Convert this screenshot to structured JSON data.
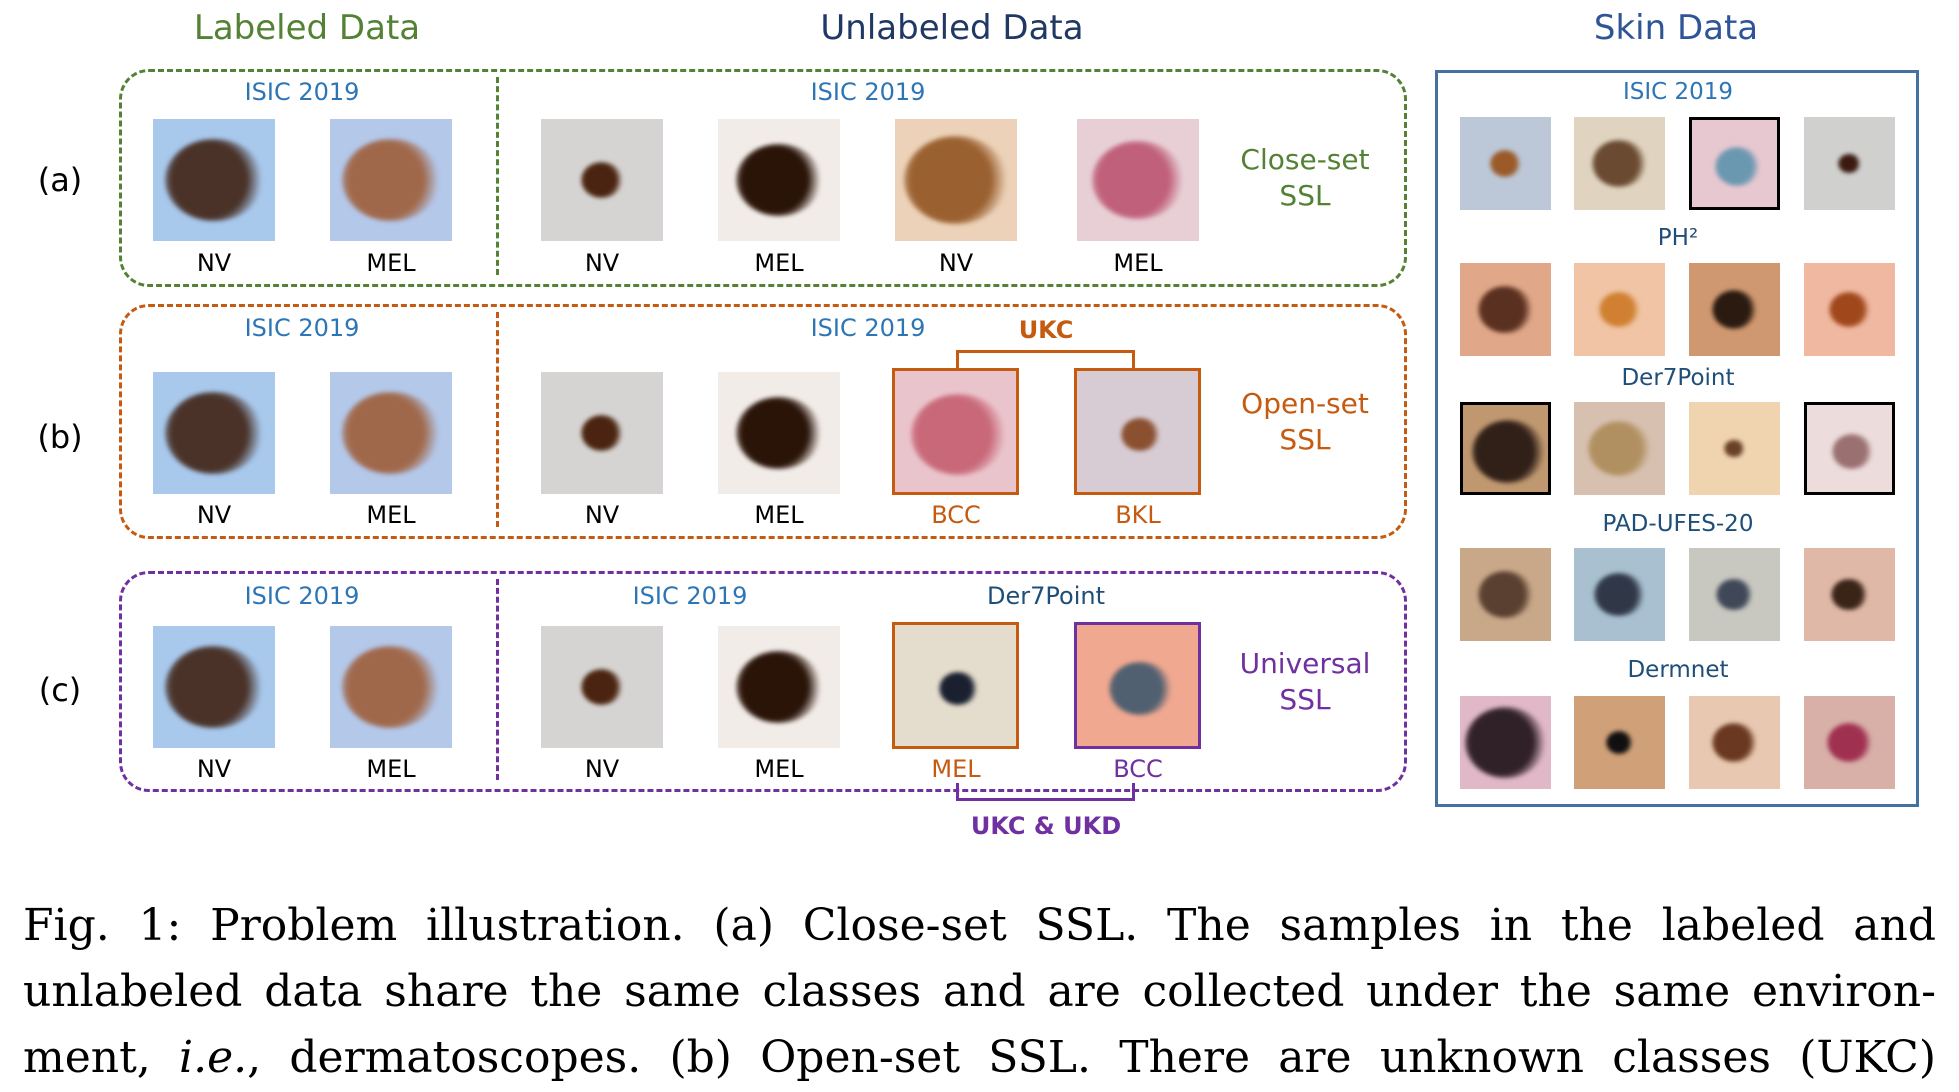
{
  "headers": {
    "labeled": {
      "text": "Labeled Data",
      "color": "#548235"
    },
    "unlabeled": {
      "text": "Unlabeled Data",
      "color": "#1f3864"
    },
    "skin": {
      "text": "Skin Data",
      "color": "#2f5597"
    }
  },
  "rows": [
    {
      "id": "a",
      "label": "(a)",
      "color": "#548235",
      "labeled_source": "ISIC 2019",
      "unlabeled_source": "ISIC 2019",
      "unlabeled_source2": "",
      "side_label": [
        "Close-set",
        "SSL"
      ],
      "labeled": [
        {
          "cls": "NV",
          "bg": "#a8c8ec",
          "lesion": "#4a3228"
        },
        {
          "cls": "MEL",
          "bg": "#b4c8ea",
          "lesion": "#a0684a"
        }
      ],
      "unlabeled": [
        {
          "cls": "NV",
          "bg": "#d6d4d2",
          "lesion": "#4a2410",
          "size": 0.35
        },
        {
          "cls": "MEL",
          "bg": "#f2ece8",
          "lesion": "#2a1408",
          "size": 0.7
        },
        {
          "cls": "NV",
          "bg": "#ecd2b8",
          "lesion": "#9a6030",
          "size": 0.85
        },
        {
          "cls": "MEL",
          "bg": "#e8cfd6",
          "lesion": "#c0607a",
          "size": 0.75
        }
      ]
    },
    {
      "id": "b",
      "label": "(b)",
      "color": "#c55a11",
      "labeled_source": "ISIC 2019",
      "unlabeled_source": "ISIC 2019",
      "side_label": [
        "Open-set",
        "SSL"
      ],
      "bracket_label": "UKC",
      "labeled": [
        {
          "cls": "NV",
          "bg": "#a8c8ec",
          "lesion": "#4a3228"
        },
        {
          "cls": "MEL",
          "bg": "#b4c8ea",
          "lesion": "#a0684a"
        }
      ],
      "unlabeled": [
        {
          "cls": "NV",
          "bg": "#d6d4d2",
          "lesion": "#4a2410",
          "size": 0.35
        },
        {
          "cls": "MEL",
          "bg": "#f2ece8",
          "lesion": "#2a1408",
          "size": 0.7
        },
        {
          "cls": "BCC",
          "bg": "#eac4cc",
          "lesion": "#c86878",
          "size": 0.75,
          "highlight": "#c55a11"
        },
        {
          "cls": "BKL",
          "bg": "#d8ccd4",
          "lesion": "#8a5030",
          "size": 0.3,
          "highlight": "#c55a11"
        }
      ]
    },
    {
      "id": "c",
      "label": "(c)",
      "color": "#7030a0",
      "labeled_source": "ISIC 2019",
      "unlabeled_source": "ISIC 2019",
      "unlabeled_source2": "Der7Point",
      "side_label": [
        "Universal",
        "SSL"
      ],
      "bracket_label": "UKC & UKD",
      "labeled": [
        {
          "cls": "NV",
          "bg": "#a8c8ec",
          "lesion": "#4a3228"
        },
        {
          "cls": "MEL",
          "bg": "#b4c8ea",
          "lesion": "#a0684a"
        }
      ],
      "unlabeled": [
        {
          "cls": "NV",
          "bg": "#d6d4d2",
          "lesion": "#4a2410",
          "size": 0.35
        },
        {
          "cls": "MEL",
          "bg": "#f2ece8",
          "lesion": "#2a1408",
          "size": 0.7
        },
        {
          "cls": "MEL",
          "bg": "#e4dccc",
          "lesion": "#1a2030",
          "size": 0.3,
          "highlight": "#c55a11",
          "label_color": "#c55a11"
        },
        {
          "cls": "BCC",
          "bg": "#f0a890",
          "lesion": "#506070",
          "size": 0.5,
          "highlight": "#7030a0",
          "label_color": "#7030a0"
        }
      ]
    }
  ],
  "skin_data": {
    "groups": [
      {
        "name": "ISIC 2019",
        "images": [
          {
            "bg": "#bcc8d8",
            "lesion": "#9a5a28",
            "size": 0.35
          },
          {
            "bg": "#e0d4c0",
            "lesion": "#6a4a30",
            "size": 0.6
          },
          {
            "bg": "#e8c8d0",
            "lesion": "#6a98b0",
            "size": 0.5,
            "frame": "#000000"
          },
          {
            "bg": "#d0d0ce",
            "lesion": "#3a1a10",
            "size": 0.25
          }
        ]
      },
      {
        "name": "PH²",
        "images": [
          {
            "bg": "#e0a888",
            "lesion": "#5a3020",
            "size": 0.6
          },
          {
            "bg": "#f0c4a4",
            "lesion": "#d08030",
            "size": 0.45
          },
          {
            "bg": "#d09870",
            "lesion": "#2a1a10",
            "size": 0.5
          },
          {
            "bg": "#f0b8a0",
            "lesion": "#a0481c",
            "size": 0.45
          }
        ]
      },
      {
        "name": "Der7Point",
        "images": [
          {
            "bg": "#c09870",
            "lesion": "#302018",
            "size": 0.8,
            "frame": "#000000"
          },
          {
            "bg": "#d8c0b0",
            "lesion": "#b09060",
            "size": 0.7
          },
          {
            "bg": "#f0d4b0",
            "lesion": "#6a4028",
            "size": 0.22
          },
          {
            "bg": "#ecdcdc",
            "lesion": "#9a7070",
            "size": 0.45,
            "frame": "#000000"
          }
        ]
      },
      {
        "name": "PAD-UFES-20",
        "images": [
          {
            "bg": "#c8a888",
            "lesion": "#5a4030",
            "size": 0.6
          },
          {
            "bg": "#a8c0d0",
            "lesion": "#303848",
            "size": 0.55
          },
          {
            "bg": "#c8c8c0",
            "lesion": "#404858",
            "size": 0.4
          },
          {
            "bg": "#e0b8a8",
            "lesion": "#3a2418",
            "size": 0.4
          }
        ]
      },
      {
        "name": "Dermnet",
        "images": [
          {
            "bg": "#e0b8c8",
            "lesion": "#302028",
            "size": 0.9
          },
          {
            "bg": "#d0a078",
            "lesion": "#101010",
            "size": 0.3
          },
          {
            "bg": "#e8c8b0",
            "lesion": "#6a3820",
            "size": 0.5
          },
          {
            "bg": "#d8b0a8",
            "lesion": "#a03050",
            "size": 0.5
          }
        ]
      }
    ]
  },
  "caption": {
    "lines": [
      "Fig. 1: Problem illustration. (a) Close-set SSL. The samples in the labeled and",
      "unlabeled data share the same classes and are collected under the same environ-",
      "ment, i.e., dermatoscopes. (b) Open-set SSL. There are unknown classes (UKC)"
    ]
  }
}
